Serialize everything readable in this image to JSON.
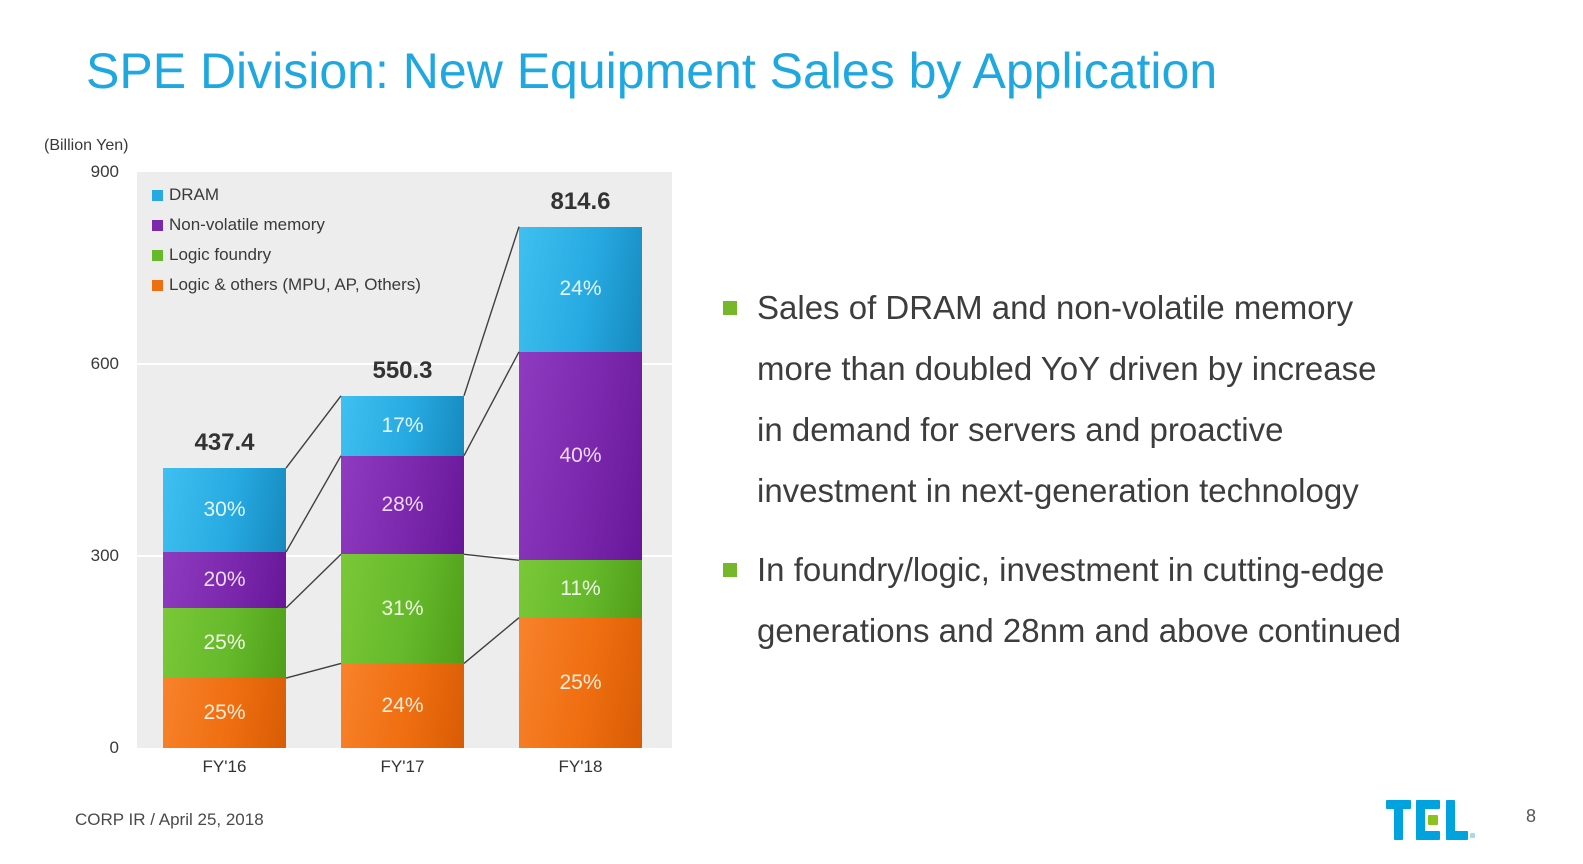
{
  "title": "SPE Division: New Equipment Sales by Application",
  "chart_data": {
    "type": "bar",
    "subtype": "stacked",
    "title": "",
    "unit_label": "(Billion Yen)",
    "xlabel": "",
    "ylabel": "Billion Yen",
    "categories": [
      "FY'16",
      "FY'17",
      "FY'18"
    ],
    "totals": [
      437.4,
      550.3,
      814.6
    ],
    "total_labels": [
      "437.4",
      "550.3",
      "814.6"
    ],
    "series": [
      {
        "name": "DRAM",
        "pct": [
          30,
          17,
          24
        ],
        "color_light": "#3fc0f0",
        "color_base": "#27aae1",
        "color_dark": "#1589be",
        "label_color": "#e3f6fe"
      },
      {
        "name": "Non-volatile memory",
        "pct": [
          20,
          28,
          40
        ],
        "color_light": "#8f3bc0",
        "color_base": "#7b28ad",
        "color_dark": "#671699",
        "label_color": "#ecdbf8"
      },
      {
        "name": "Logic foundry",
        "pct": [
          25,
          31,
          11
        ],
        "color_light": "#7ac838",
        "color_base": "#65b92b",
        "color_dark": "#509e18",
        "label_color": "#f0fae6"
      },
      {
        "name": "Logic & others (MPU, AP, Others)",
        "pct": [
          25,
          24,
          25
        ],
        "color_light": "#f8822b",
        "color_base": "#ef6e10",
        "color_dark": "#d85c05",
        "label_color": "#fdeddd"
      }
    ],
    "ylim": [
      0,
      900
    ],
    "yticks": [
      900,
      600,
      300,
      0
    ],
    "gridline_values": [
      600,
      300
    ],
    "grid": true,
    "legend_position": "top-left-inside",
    "plot_bg": "#ededed",
    "connector_color": "#3f3f3f"
  },
  "bullets": [
    {
      "lines": [
        "Sales of DRAM and non-volatile memory",
        "more than doubled YoY driven by increase",
        "in demand for servers and proactive",
        "investment in next-generation technology"
      ]
    },
    {
      "lines": [
        "In foundry/logic, investment in cutting-edge",
        "generations and 28nm and above continued"
      ]
    }
  ],
  "footer": {
    "left_text": "CORP IR / April 25, 2018",
    "logo_text": "TEL",
    "page_number": "8"
  },
  "colors": {
    "title": "#1fa8e0",
    "bullet_marker": "#76b82a",
    "body_text": "#3d3d3d",
    "logo_blue": "#00a3de",
    "logo_green": "#8cc21e"
  }
}
